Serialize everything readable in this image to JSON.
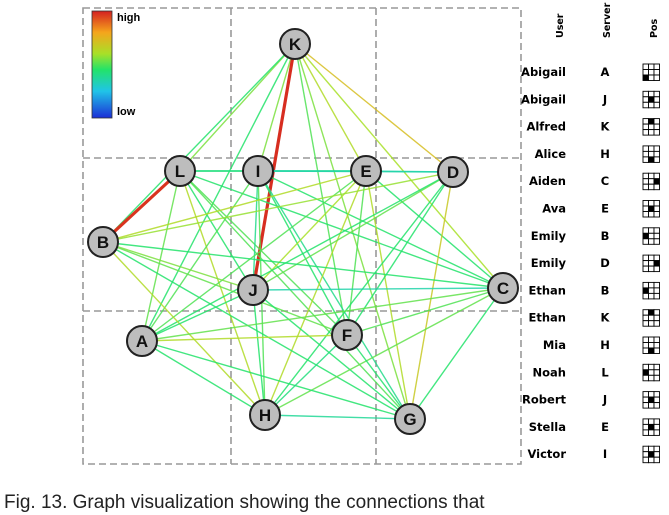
{
  "legend": {
    "high_label": "high",
    "low_label": "low"
  },
  "colors": {
    "high": "#d42020",
    "low": "#1c2fd6",
    "node_fill": "#bdbdbd",
    "grid": "#999999"
  },
  "graph": {
    "nodes": [
      {
        "id": "K"
      },
      {
        "id": "L"
      },
      {
        "id": "I"
      },
      {
        "id": "E"
      },
      {
        "id": "D"
      },
      {
        "id": "B"
      },
      {
        "id": "J"
      },
      {
        "id": "C"
      },
      {
        "id": "A"
      },
      {
        "id": "F"
      },
      {
        "id": "H"
      },
      {
        "id": "G"
      }
    ],
    "edges": [
      {
        "s": "K",
        "t": "L",
        "level": 0.55
      },
      {
        "s": "K",
        "t": "I",
        "level": 0.55
      },
      {
        "s": "K",
        "t": "E",
        "level": 0.62
      },
      {
        "s": "K",
        "t": "D",
        "level": 0.72
      },
      {
        "s": "K",
        "t": "B",
        "level": 0.45
      },
      {
        "s": "K",
        "t": "J",
        "level": 0.98
      },
      {
        "s": "K",
        "t": "C",
        "level": 0.6
      },
      {
        "s": "K",
        "t": "F",
        "level": 0.5
      },
      {
        "s": "K",
        "t": "G",
        "level": 0.55
      },
      {
        "s": "K",
        "t": "A",
        "level": 0.45
      },
      {
        "s": "L",
        "t": "B",
        "level": 0.97
      },
      {
        "s": "L",
        "t": "I",
        "level": 0.42
      },
      {
        "s": "L",
        "t": "E",
        "level": 0.42
      },
      {
        "s": "L",
        "t": "A",
        "level": 0.52
      },
      {
        "s": "L",
        "t": "H",
        "level": 0.62
      },
      {
        "s": "L",
        "t": "F",
        "level": 0.5
      },
      {
        "s": "L",
        "t": "G",
        "level": 0.5
      },
      {
        "s": "L",
        "t": "C",
        "level": 0.45
      },
      {
        "s": "L",
        "t": "J",
        "level": 0.45
      },
      {
        "s": "I",
        "t": "E",
        "level": 0.38
      },
      {
        "s": "I",
        "t": "D",
        "level": 0.35
      },
      {
        "s": "I",
        "t": "J",
        "level": 0.4
      },
      {
        "s": "I",
        "t": "H",
        "level": 0.5
      },
      {
        "s": "I",
        "t": "A",
        "level": 0.5
      },
      {
        "s": "I",
        "t": "F",
        "level": 0.45
      },
      {
        "s": "I",
        "t": "G",
        "level": 0.4
      },
      {
        "s": "I",
        "t": "C",
        "level": 0.45
      },
      {
        "s": "E",
        "t": "D",
        "level": 0.35
      },
      {
        "s": "E",
        "t": "B",
        "level": 0.62
      },
      {
        "s": "E",
        "t": "J",
        "level": 0.6
      },
      {
        "s": "E",
        "t": "H",
        "level": 0.62
      },
      {
        "s": "E",
        "t": "G",
        "level": 0.62
      },
      {
        "s": "E",
        "t": "A",
        "level": 0.5
      },
      {
        "s": "E",
        "t": "F",
        "level": 0.5
      },
      {
        "s": "E",
        "t": "C",
        "level": 0.45
      },
      {
        "s": "D",
        "t": "B",
        "level": 0.58
      },
      {
        "s": "D",
        "t": "J",
        "level": 0.52
      },
      {
        "s": "D",
        "t": "F",
        "level": 0.45
      },
      {
        "s": "D",
        "t": "H",
        "level": 0.45
      },
      {
        "s": "D",
        "t": "G",
        "level": 0.68
      },
      {
        "s": "D",
        "t": "A",
        "level": 0.45
      },
      {
        "s": "B",
        "t": "J",
        "level": 0.55
      },
      {
        "s": "B",
        "t": "F",
        "level": 0.52
      },
      {
        "s": "B",
        "t": "H",
        "level": 0.62
      },
      {
        "s": "B",
        "t": "G",
        "level": 0.45
      },
      {
        "s": "B",
        "t": "C",
        "level": 0.45
      },
      {
        "s": "J",
        "t": "C",
        "level": 0.35
      },
      {
        "s": "J",
        "t": "H",
        "level": 0.45
      },
      {
        "s": "J",
        "t": "G",
        "level": 0.45
      },
      {
        "s": "J",
        "t": "A",
        "level": 0.45
      },
      {
        "s": "C",
        "t": "A",
        "level": 0.52
      },
      {
        "s": "C",
        "t": "H",
        "level": 0.52
      },
      {
        "s": "C",
        "t": "G",
        "level": 0.45
      },
      {
        "s": "C",
        "t": "F",
        "level": 0.5
      },
      {
        "s": "A",
        "t": "F",
        "level": 0.62
      },
      {
        "s": "A",
        "t": "H",
        "level": 0.45
      },
      {
        "s": "A",
        "t": "G",
        "level": 0.45
      },
      {
        "s": "F",
        "t": "H",
        "level": 0.42
      },
      {
        "s": "F",
        "t": "G",
        "level": 0.45
      },
      {
        "s": "H",
        "t": "G",
        "level": 0.38
      }
    ]
  },
  "table": {
    "headers": {
      "user": "User",
      "server": "Server",
      "pos": "Pos"
    },
    "rows": [
      {
        "user": "Abigail",
        "server": "A",
        "cell": [
          2,
          0
        ]
      },
      {
        "user": "Abigail",
        "server": "J",
        "cell": [
          1,
          1
        ]
      },
      {
        "user": "Alfred",
        "server": "K",
        "cell": [
          0,
          1
        ]
      },
      {
        "user": "Alice",
        "server": "H",
        "cell": [
          2,
          1
        ]
      },
      {
        "user": "Aiden",
        "server": "C",
        "cell": [
          1,
          2
        ]
      },
      {
        "user": "Ava",
        "server": "E",
        "cell": [
          1,
          1
        ]
      },
      {
        "user": "Emily",
        "server": "B",
        "cell": [
          1,
          0
        ]
      },
      {
        "user": "Emily",
        "server": "D",
        "cell": [
          1,
          2
        ]
      },
      {
        "user": "Ethan",
        "server": "B",
        "cell": [
          1,
          0
        ]
      },
      {
        "user": "Ethan",
        "server": "K",
        "cell": [
          0,
          1
        ]
      },
      {
        "user": "Mia",
        "server": "H",
        "cell": [
          2,
          1
        ]
      },
      {
        "user": "Noah",
        "server": "L",
        "cell": [
          1,
          0
        ]
      },
      {
        "user": "Robert",
        "server": "J",
        "cell": [
          1,
          1
        ]
      },
      {
        "user": "Stella",
        "server": "E",
        "cell": [
          1,
          1
        ]
      },
      {
        "user": "Victor",
        "server": "I",
        "cell": [
          1,
          1
        ]
      }
    ]
  },
  "caption": "Fig. 13. Graph visualization showing the connections that"
}
